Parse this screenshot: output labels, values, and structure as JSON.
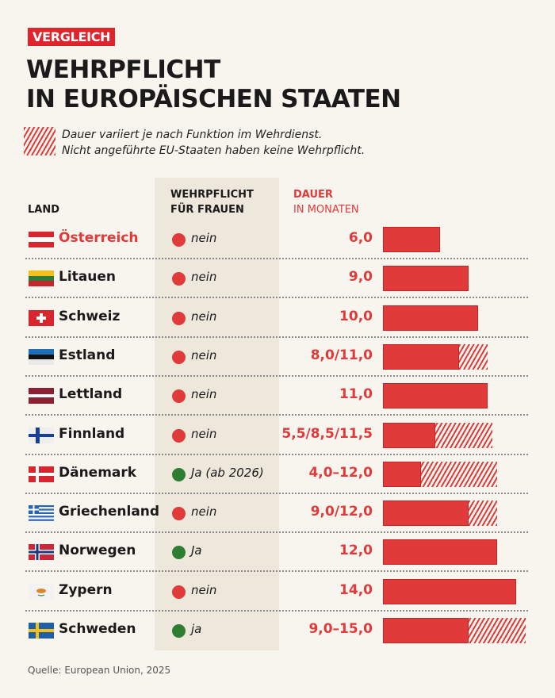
{
  "kicker": "VERGLEICH",
  "title_line1": "WEHRPFLICHT",
  "title_line2": "IN EUROPÄISCHEN STAATEN",
  "legend": {
    "line1": "Dauer variiert je nach Funktion im Wehrdienst.",
    "line2": "Nicht angeführte EU-Staaten haben keine Wehrpflicht."
  },
  "headers": {
    "land": "LAND",
    "frauen1": "WEHRPFLICHT",
    "frauen2": "FÜR FRAUEN",
    "dauer1": "DAUER",
    "dauer2": "IN MONATEN"
  },
  "source": "Quelle: European Union, 2025",
  "colors": {
    "accent": "#e03a3a",
    "yes": "#2e7d32",
    "no": "#e03a3a",
    "band": "#eee7dc",
    "background": "#f8f4ee"
  },
  "chart_data": {
    "type": "bar",
    "orientation": "horizontal",
    "unit": "Monate",
    "xlim": [
      0,
      15
    ],
    "rows": [
      {
        "country": "Österreich",
        "flag": "austria-flag",
        "women": "nein",
        "women_yes": false,
        "label": "6,0",
        "min": 6.0,
        "max": 6.0,
        "highlight": true
      },
      {
        "country": "Litauen",
        "flag": "lithuania-flag",
        "women": "nein",
        "women_yes": false,
        "label": "9,0",
        "min": 9.0,
        "max": 9.0
      },
      {
        "country": "Schweiz",
        "flag": "switzerland-flag",
        "women": "nein",
        "women_yes": false,
        "label": "10,0",
        "min": 10.0,
        "max": 10.0
      },
      {
        "country": "Estland",
        "flag": "estonia-flag",
        "women": "nein",
        "women_yes": false,
        "label": "8,0/11,0",
        "min": 8.0,
        "max": 11.0
      },
      {
        "country": "Lettland",
        "flag": "latvia-flag",
        "women": "nein",
        "women_yes": false,
        "label": "11,0",
        "min": 11.0,
        "max": 11.0
      },
      {
        "country": "Finnland",
        "flag": "finland-flag",
        "women": "nein",
        "women_yes": false,
        "label": "5,5/8,5/11,5",
        "min": 5.5,
        "max": 11.5
      },
      {
        "country": "Dänemark",
        "flag": "denmark-flag",
        "women": "Ja (ab 2026)",
        "women_yes": true,
        "label": "4,0–12,0",
        "min": 4.0,
        "max": 12.0
      },
      {
        "country": "Griechenland",
        "flag": "greece-flag",
        "women": "nein",
        "women_yes": false,
        "label": "9,0/12,0",
        "min": 9.0,
        "max": 12.0
      },
      {
        "country": "Norwegen",
        "flag": "norway-flag",
        "women": "Ja",
        "women_yes": true,
        "label": "12,0",
        "min": 12.0,
        "max": 12.0
      },
      {
        "country": "Zypern",
        "flag": "cyprus-flag",
        "women": "nein",
        "women_yes": false,
        "label": "14,0",
        "min": 14.0,
        "max": 14.0
      },
      {
        "country": "Schweden",
        "flag": "sweden-flag",
        "women": "ja",
        "women_yes": true,
        "label": "9,0–15,0",
        "min": 9.0,
        "max": 15.0
      }
    ]
  }
}
